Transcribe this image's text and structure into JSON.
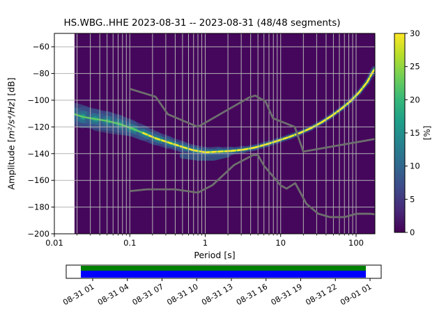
{
  "title": "HS.WBG..HHE   2023-08-31 -- 2023-08-31  (48/48 segments)",
  "chart_data": {
    "type": "heatmap",
    "title": "HS.WBG..HHE   2023-08-31 -- 2023-08-31  (48/48 segments)",
    "xlabel": "Period [s]",
    "ylabel": "Amplitude [m²/s⁴/Hz] [dB]",
    "ylabel_parts": {
      "prefix": "Amplitude [",
      "math": "m²/s⁴/Hz",
      "suffix": "] [dB]"
    },
    "x_scale": "log",
    "xlim": [
      0.01,
      177
    ],
    "ylim": [
      -200,
      -50
    ],
    "grid": true,
    "x_ticks": [
      {
        "v": 0.01,
        "label": "0.01"
      },
      {
        "v": 0.1,
        "label": "0.1"
      },
      {
        "v": 1,
        "label": "1"
      },
      {
        "v": 10,
        "label": "10"
      },
      {
        "v": 100,
        "label": "100"
      }
    ],
    "y_ticks": [
      {
        "v": -60,
        "label": "−60"
      },
      {
        "v": -80,
        "label": "−80"
      },
      {
        "v": -100,
        "label": "−100"
      },
      {
        "v": -120,
        "label": "−120"
      },
      {
        "v": -140,
        "label": "−140"
      },
      {
        "v": -160,
        "label": "−160"
      },
      {
        "v": -180,
        "label": "−180"
      },
      {
        "v": -200,
        "label": "−200"
      }
    ],
    "background_color": "#45075c",
    "grid_color": "#b3b3b3",
    "data_period_min": 0.0185,
    "psd_mode_curve": {
      "comment": "dominant PSD ridge of the 2D histogram: [period s, amplitude dB, halo half-width dB]",
      "points": [
        [
          0.0185,
          -110.5,
          9.0
        ],
        [
          0.024,
          -112.5,
          8.0
        ],
        [
          0.034,
          -114.0,
          7.5
        ],
        [
          0.05,
          -115.5,
          7.0
        ],
        [
          0.07,
          -117.5,
          6.5
        ],
        [
          0.1,
          -120.5,
          6.0
        ],
        [
          0.15,
          -124.5,
          5.5
        ],
        [
          0.22,
          -128.5,
          5.0
        ],
        [
          0.32,
          -131.5,
          4.5
        ],
        [
          0.5,
          -135.0,
          4.0
        ],
        [
          0.7,
          -137.5,
          4.0
        ],
        [
          1.0,
          -139.0,
          4.0
        ],
        [
          1.5,
          -138.5,
          3.5
        ],
        [
          2.2,
          -138.0,
          3.0
        ],
        [
          3.2,
          -137.0,
          2.5
        ],
        [
          4.5,
          -135.5,
          2.2
        ],
        [
          6.5,
          -133.0,
          2.2
        ],
        [
          9.0,
          -130.5,
          2.0
        ],
        [
          13.0,
          -127.5,
          2.0
        ],
        [
          18.0,
          -124.5,
          2.0
        ],
        [
          25.0,
          -121.0,
          1.8
        ],
        [
          35.0,
          -116.5,
          1.8
        ],
        [
          48.0,
          -111.5,
          1.8
        ],
        [
          65.0,
          -106.0,
          1.8
        ],
        [
          85.0,
          -100.5,
          1.8
        ],
        [
          110.0,
          -94.0,
          1.8
        ],
        [
          140.0,
          -86.5,
          1.8
        ],
        [
          160.0,
          -80.5,
          2.0
        ],
        [
          176.0,
          -76.5,
          2.5
        ]
      ],
      "yellow_core_from_period": 0.13,
      "lobes": [
        {
          "name": "below-minimum",
          "points": [
            [
              0.5,
              -141.5
            ],
            [
              0.8,
              -143.0
            ],
            [
              1.3,
              -143.0
            ],
            [
              2.0,
              -140.5
            ]
          ],
          "width_db": 2.2,
          "opacity": 0.75
        },
        {
          "name": "left-lower-band",
          "points": [
            [
              0.035,
              -120.5
            ],
            [
              0.06,
              -123.0
            ],
            [
              0.1,
              -124.5
            ],
            [
              0.16,
              -127.5
            ]
          ],
          "width_db": 2.4,
          "opacity": 0.5
        }
      ],
      "colors": {
        "halo": "#3b528b",
        "mid": "#2c728e",
        "inner": "#21918c",
        "ridge": "#5ec962",
        "core": "#fde725",
        "lobe": "#31688e"
      }
    },
    "noise_models": {
      "color": "#6e6e6e",
      "nhnm": [
        [
          0.1,
          -91.5
        ],
        [
          0.22,
          -97.4
        ],
        [
          0.32,
          -110.5
        ],
        [
          0.8,
          -120.0
        ],
        [
          3.8,
          -98.0
        ],
        [
          4.6,
          -96.5
        ],
        [
          6.3,
          -101.0
        ],
        [
          7.9,
          -113.5
        ],
        [
          15.4,
          -120.0
        ],
        [
          20.0,
          -138.5
        ],
        [
          178.0,
          -129.0
        ]
      ],
      "nlnm": [
        [
          0.1,
          -168.0
        ],
        [
          0.17,
          -166.7
        ],
        [
          0.4,
          -166.7
        ],
        [
          0.8,
          -169.2
        ],
        [
          1.24,
          -163.7
        ],
        [
          2.4,
          -148.6
        ],
        [
          4.3,
          -141.1
        ],
        [
          5.0,
          -141.1
        ],
        [
          6.0,
          -149.0
        ],
        [
          10.0,
          -163.8
        ],
        [
          12.0,
          -166.2
        ],
        [
          15.6,
          -162.1
        ],
        [
          21.9,
          -177.5
        ],
        [
          31.6,
          -185.0
        ],
        [
          45.0,
          -187.5
        ],
        [
          70.0,
          -187.5
        ],
        [
          101.0,
          -185.0
        ],
        [
          154.0,
          -185.0
        ],
        [
          178.0,
          -185.4
        ]
      ]
    },
    "colorbar": {
      "label": "[%]",
      "min": 0,
      "max": 30,
      "ticks": [
        {
          "v": 0,
          "label": "0"
        },
        {
          "v": 5,
          "label": "5"
        },
        {
          "v": 10,
          "label": "10"
        },
        {
          "v": 15,
          "label": "15"
        },
        {
          "v": 20,
          "label": "20"
        },
        {
          "v": 25,
          "label": "25"
        },
        {
          "v": 30,
          "label": "30"
        }
      ],
      "colormap": "viridis",
      "stops": [
        "#440154",
        "#482878",
        "#3e4989",
        "#31688e",
        "#26828e",
        "#1f9e89",
        "#35b779",
        "#6ece58",
        "#b5de2b",
        "#fde725"
      ]
    }
  },
  "timeline": {
    "tick_labels": [
      "08-31 01",
      "08-31 04",
      "08-31 07",
      "08-31 10",
      "08-31 13",
      "08-31 16",
      "08-31 19",
      "08-31 22",
      "09-01 01"
    ],
    "coverage_colors": {
      "top": "#008000",
      "bottom": "#0000ff"
    }
  }
}
